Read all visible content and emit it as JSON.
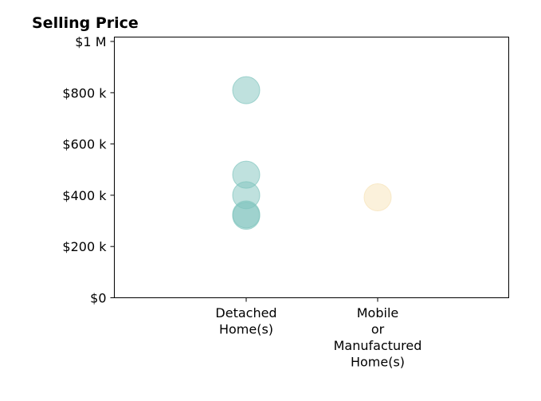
{
  "chart_data": {
    "type": "scatter",
    "title": "Selling Price",
    "xlabel": "",
    "ylabel": "",
    "categories": [
      [
        "Detached",
        "Home(s)"
      ],
      [
        "Mobile",
        "or",
        "Manufactured",
        "Home(s)"
      ]
    ],
    "ylim": [
      0,
      1000000
    ],
    "yticks": [
      {
        "value": 0,
        "label": "$0"
      },
      {
        "value": 200000,
        "label": "$200 k"
      },
      {
        "value": 400000,
        "label": "$400 k"
      },
      {
        "value": 600000,
        "label": "$600 k"
      },
      {
        "value": 800000,
        "label": "$800 k"
      },
      {
        "value": 1000000,
        "label": "$1 M"
      }
    ],
    "grid": false,
    "legend": "none",
    "series": [
      {
        "category_index": 0,
        "color": "#7fc4be",
        "values": [
          810000,
          480000,
          400000,
          325000,
          320000
        ]
      },
      {
        "category_index": 1,
        "color": "#f7e3b8",
        "values": [
          392000
        ]
      }
    ]
  }
}
